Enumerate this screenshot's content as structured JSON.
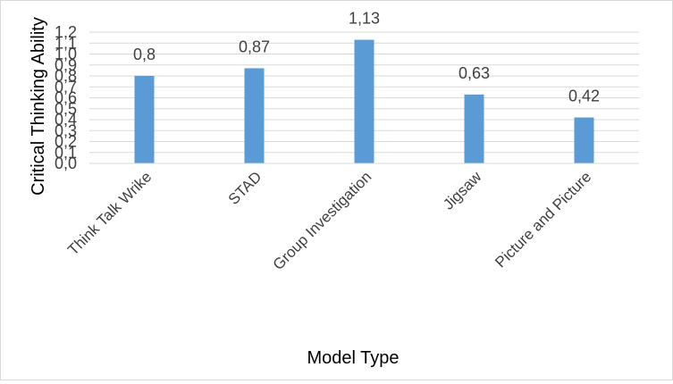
{
  "chart_data": {
    "type": "bar",
    "title": "",
    "xlabel": "Model Type",
    "ylabel": "Critical Thinking Ability",
    "categories": [
      "Think Talk Wrike",
      "STAD",
      "Group Investigation",
      "Jigsaw",
      "Picture and Picture"
    ],
    "values": [
      0.8,
      0.87,
      1.13,
      0.63,
      0.42
    ],
    "data_labels": [
      "0,8",
      "0,87",
      "1,13",
      "0,63",
      "0,42"
    ],
    "yticks": [
      0.0,
      0.1,
      0.2,
      0.3,
      0.4,
      0.5,
      0.6,
      0.7,
      0.8,
      0.9,
      1.0,
      1.1,
      1.2
    ],
    "ytick_labels": [
      "0,0",
      "0,1",
      "0,2",
      "0,3",
      "0,4",
      "0,5",
      "0,6",
      "0,7",
      "0,8",
      "0,9",
      "1,0",
      "1,1",
      "1,2"
    ],
    "ylim": [
      0,
      1.2
    ],
    "grid": true,
    "legend": "none",
    "bar_color": "#5b9bd5",
    "grid_color": "#d9d9d9"
  }
}
